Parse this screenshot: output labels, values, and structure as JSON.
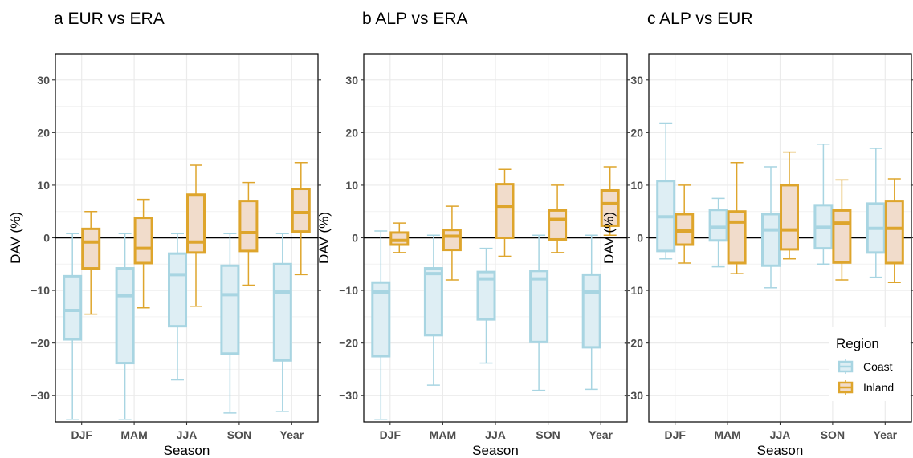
{
  "chart_data": [
    {
      "type": "box",
      "title": "a EUR vs ERA",
      "xlabel": "Season",
      "ylabel": "DAV (%)",
      "categories": [
        "DJF",
        "MAM",
        "JJA",
        "SON",
        "Year"
      ],
      "ylim": [
        -35,
        35
      ],
      "yticks": [
        -30,
        -20,
        -10,
        0,
        10,
        20,
        30
      ],
      "grid": true,
      "reference_line": 0,
      "series": [
        {
          "name": "Coast",
          "color": "#a8d5e2",
          "fill": "#deeef4",
          "boxes": [
            {
              "whisker_low": -34.5,
              "q1": -19.3,
              "median": -13.8,
              "q3": -7.3,
              "whisker_high": 0.8
            },
            {
              "whisker_low": -34.5,
              "q1": -23.8,
              "median": -11.0,
              "q3": -5.8,
              "whisker_high": 0.8
            },
            {
              "whisker_low": -27.0,
              "q1": -16.8,
              "median": -7.0,
              "q3": -3.0,
              "whisker_high": 0.8
            },
            {
              "whisker_low": -33.3,
              "q1": -22.0,
              "median": -10.8,
              "q3": -5.3,
              "whisker_high": 0.8
            },
            {
              "whisker_low": -33.0,
              "q1": -23.3,
              "median": -10.3,
              "q3": -5.0,
              "whisker_high": 0.8
            }
          ]
        },
        {
          "name": "Inland",
          "color": "#dea52c",
          "fill": "#f1dccb",
          "boxes": [
            {
              "whisker_low": -14.5,
              "q1": -5.8,
              "median": -0.8,
              "q3": 1.7,
              "whisker_high": 5.0
            },
            {
              "whisker_low": -13.3,
              "q1": -4.8,
              "median": -2.0,
              "q3": 3.8,
              "whisker_high": 7.3
            },
            {
              "whisker_low": -13.0,
              "q1": -2.8,
              "median": -0.8,
              "q3": 8.2,
              "whisker_high": 13.8
            },
            {
              "whisker_low": -9.0,
              "q1": -2.5,
              "median": 1.0,
              "q3": 7.0,
              "whisker_high": 10.5
            },
            {
              "whisker_low": -7.0,
              "q1": 1.2,
              "median": 4.8,
              "q3": 9.3,
              "whisker_high": 14.3
            }
          ]
        }
      ]
    },
    {
      "type": "box",
      "title": "b ALP vs ERA",
      "xlabel": "Season",
      "ylabel": "DAV (%)",
      "categories": [
        "DJF",
        "MAM",
        "JJA",
        "SON",
        "Year"
      ],
      "ylim": [
        -35,
        35
      ],
      "yticks": [
        -30,
        -20,
        -10,
        0,
        10,
        20,
        30
      ],
      "grid": true,
      "reference_line": 0,
      "series": [
        {
          "name": "Coast",
          "color": "#a8d5e2",
          "fill": "#deeef4",
          "boxes": [
            {
              "whisker_low": -34.5,
              "q1": -22.5,
              "median": -10.3,
              "q3": -8.5,
              "whisker_high": 1.3
            },
            {
              "whisker_low": -28.0,
              "q1": -18.5,
              "median": -6.8,
              "q3": -5.8,
              "whisker_high": 0.5
            },
            {
              "whisker_low": -23.8,
              "q1": -15.5,
              "median": -7.8,
              "q3": -6.5,
              "whisker_high": -2.0
            },
            {
              "whisker_low": -29.0,
              "q1": -19.8,
              "median": -7.8,
              "q3": -6.3,
              "whisker_high": 0.5
            },
            {
              "whisker_low": -28.8,
              "q1": -20.8,
              "median": -10.3,
              "q3": -7.0,
              "whisker_high": 0.5
            }
          ]
        },
        {
          "name": "Inland",
          "color": "#dea52c",
          "fill": "#f1dccb",
          "boxes": [
            {
              "whisker_low": -2.8,
              "q1": -1.3,
              "median": -0.5,
              "q3": 1.0,
              "whisker_high": 2.8
            },
            {
              "whisker_low": -8.0,
              "q1": -2.3,
              "median": 0.3,
              "q3": 1.5,
              "whisker_high": 6.0
            },
            {
              "whisker_low": -3.5,
              "q1": 0.0,
              "median": 6.0,
              "q3": 10.2,
              "whisker_high": 13.0
            },
            {
              "whisker_low": -2.8,
              "q1": -0.3,
              "median": 3.5,
              "q3": 5.2,
              "whisker_high": 10.0
            },
            {
              "whisker_low": 0.5,
              "q1": 2.3,
              "median": 6.5,
              "q3": 9.0,
              "whisker_high": 13.5
            }
          ]
        }
      ]
    },
    {
      "type": "box",
      "title": "c ALP vs EUR",
      "xlabel": "Season",
      "ylabel": "DAV (%)",
      "categories": [
        "DJF",
        "MAM",
        "JJA",
        "SON",
        "Year"
      ],
      "ylim": [
        -35,
        35
      ],
      "yticks": [
        -30,
        -20,
        -10,
        0,
        10,
        20,
        30
      ],
      "grid": true,
      "reference_line": 0,
      "legend": {
        "title": "Region",
        "position": "bottom-right"
      },
      "series": [
        {
          "name": "Coast",
          "color": "#a8d5e2",
          "fill": "#deeef4",
          "boxes": [
            {
              "whisker_low": -4.0,
              "q1": -2.5,
              "median": 4.0,
              "q3": 10.8,
              "whisker_high": 21.8
            },
            {
              "whisker_low": -5.5,
              "q1": -0.5,
              "median": 2.0,
              "q3": 5.3,
              "whisker_high": 7.5
            },
            {
              "whisker_low": -9.5,
              "q1": -5.3,
              "median": 1.5,
              "q3": 4.5,
              "whisker_high": 13.5
            },
            {
              "whisker_low": -5.0,
              "q1": -2.0,
              "median": 2.0,
              "q3": 6.2,
              "whisker_high": 17.8
            },
            {
              "whisker_low": -7.5,
              "q1": -2.8,
              "median": 1.8,
              "q3": 6.5,
              "whisker_high": 17.0
            }
          ]
        },
        {
          "name": "Inland",
          "color": "#dea52c",
          "fill": "#f1dccb",
          "boxes": [
            {
              "whisker_low": -4.8,
              "q1": -1.3,
              "median": 1.3,
              "q3": 4.5,
              "whisker_high": 10.0
            },
            {
              "whisker_low": -6.8,
              "q1": -4.8,
              "median": 3.0,
              "q3": 5.0,
              "whisker_high": 14.3
            },
            {
              "whisker_low": -4.0,
              "q1": -2.2,
              "median": 1.5,
              "q3": 10.0,
              "whisker_high": 16.3
            },
            {
              "whisker_low": -8.0,
              "q1": -4.7,
              "median": 2.8,
              "q3": 5.2,
              "whisker_high": 11.0
            },
            {
              "whisker_low": -8.5,
              "q1": -4.8,
              "median": 1.8,
              "q3": 7.0,
              "whisker_high": 11.2
            }
          ]
        }
      ]
    }
  ]
}
